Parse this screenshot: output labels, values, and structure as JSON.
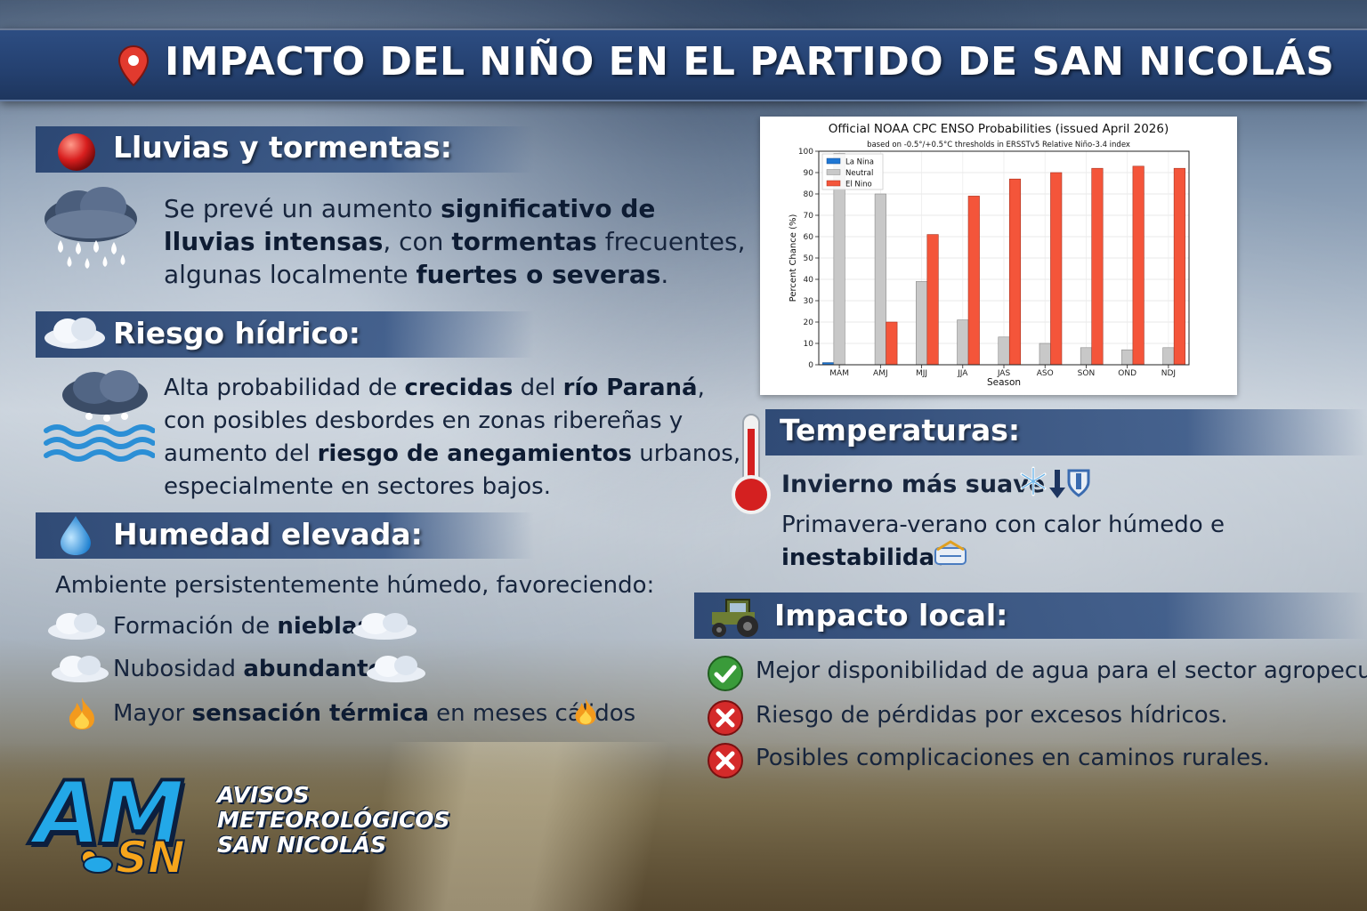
{
  "title": "IMPACTO DEL NIÑO EN EL PARTIDO DE SAN NICOLÁS",
  "lluvias": {
    "title": "Lluvias y tormentas:",
    "l1a": "Se prevé un aumento ",
    "l1b": "significativo de",
    "l2a": "lluvias intensas",
    "l2b": ", con ",
    "l2c": "tormentas",
    "l2d": " frecuentes,",
    "l3a": "algunas localmente ",
    "l3b": "fuertes o severas",
    "l3c": "."
  },
  "riesgo": {
    "title": "Riesgo hídrico:",
    "l1a": "Alta probabilidad de ",
    "l1b": "crecidas",
    "l1c": " del ",
    "l1d": "río Paraná",
    "l1e": ",",
    "l2": "con posibles desbordes en zonas ribereñas y",
    "l3a": "aumento del ",
    "l3b": "riesgo de anegamientos",
    "l3c": " urbanos,",
    "l4": "especialmente en sectores bajos."
  },
  "humedad": {
    "title": "Humedad elevada:",
    "intro": "Ambiente persistentemente húmedo, favoreciendo:",
    "items": [
      {
        "a": "Formación de ",
        "b": "nieblas",
        "c": ""
      },
      {
        "a": "Nubosidad ",
        "b": "abundante",
        "c": ""
      },
      {
        "a": "Mayor ",
        "b": "sensación térmica",
        "c": " en meses cálidos"
      }
    ]
  },
  "temperaturas": {
    "title": "Temperaturas:",
    "line1": "Invierno más suave",
    "line2a": "Primavera-verano con calor húmedo e",
    "line2b": "inestabilidad"
  },
  "impacto": {
    "title": "Impacto local:",
    "items": [
      {
        "text": "Mejor disponibilidad de agua para el sector agropecuario",
        "status": "positive"
      },
      {
        "text": "Riesgo de pérdidas por excesos hídricos.",
        "status": "negative"
      },
      {
        "text": "Posibles complicaciones en caminos rurales.",
        "status": "negative"
      }
    ]
  },
  "logo": {
    "am": "AM",
    "sn": "SN",
    "line1": "AVISOS",
    "line2": "METEOROLÓGICOS",
    "line3": "SAN NICOLÁS"
  },
  "colors": {
    "la_nina": "#1f77d4",
    "neutral": "#c8c8c8",
    "el_nino": "#f4553a",
    "title_bar": "#24406f",
    "positive": "#3a9b3a",
    "negative": "#d42a2a"
  },
  "chart_data": {
    "type": "bar",
    "title": "Official NOAA CPC ENSO Probabilities (issued April 2026)",
    "subtitle": "based on -0.5°/+0.5°C thresholds in ERSSTv5 Relative Niño-3.4 index",
    "xlabel": "Season",
    "ylabel": "Percent Chance (%)",
    "ylim": [
      0,
      100
    ],
    "yticks": [
      0,
      10,
      20,
      30,
      40,
      50,
      60,
      70,
      80,
      90,
      100
    ],
    "grid": true,
    "legend_position": "top-left",
    "categories": [
      "MAM",
      "AMJ",
      "MJJ",
      "JJA",
      "JAS",
      "ASO",
      "SON",
      "OND",
      "NDJ"
    ],
    "series": [
      {
        "name": "La Nina",
        "values": [
          1,
          0,
          0,
          0,
          0,
          0,
          0,
          0,
          0
        ]
      },
      {
        "name": "Neutral",
        "values": [
          99,
          80,
          39,
          21,
          13,
          10,
          8,
          7,
          8
        ]
      },
      {
        "name": "El Nino",
        "values": [
          0,
          20,
          61,
          79,
          87,
          90,
          92,
          93,
          92
        ]
      }
    ]
  }
}
